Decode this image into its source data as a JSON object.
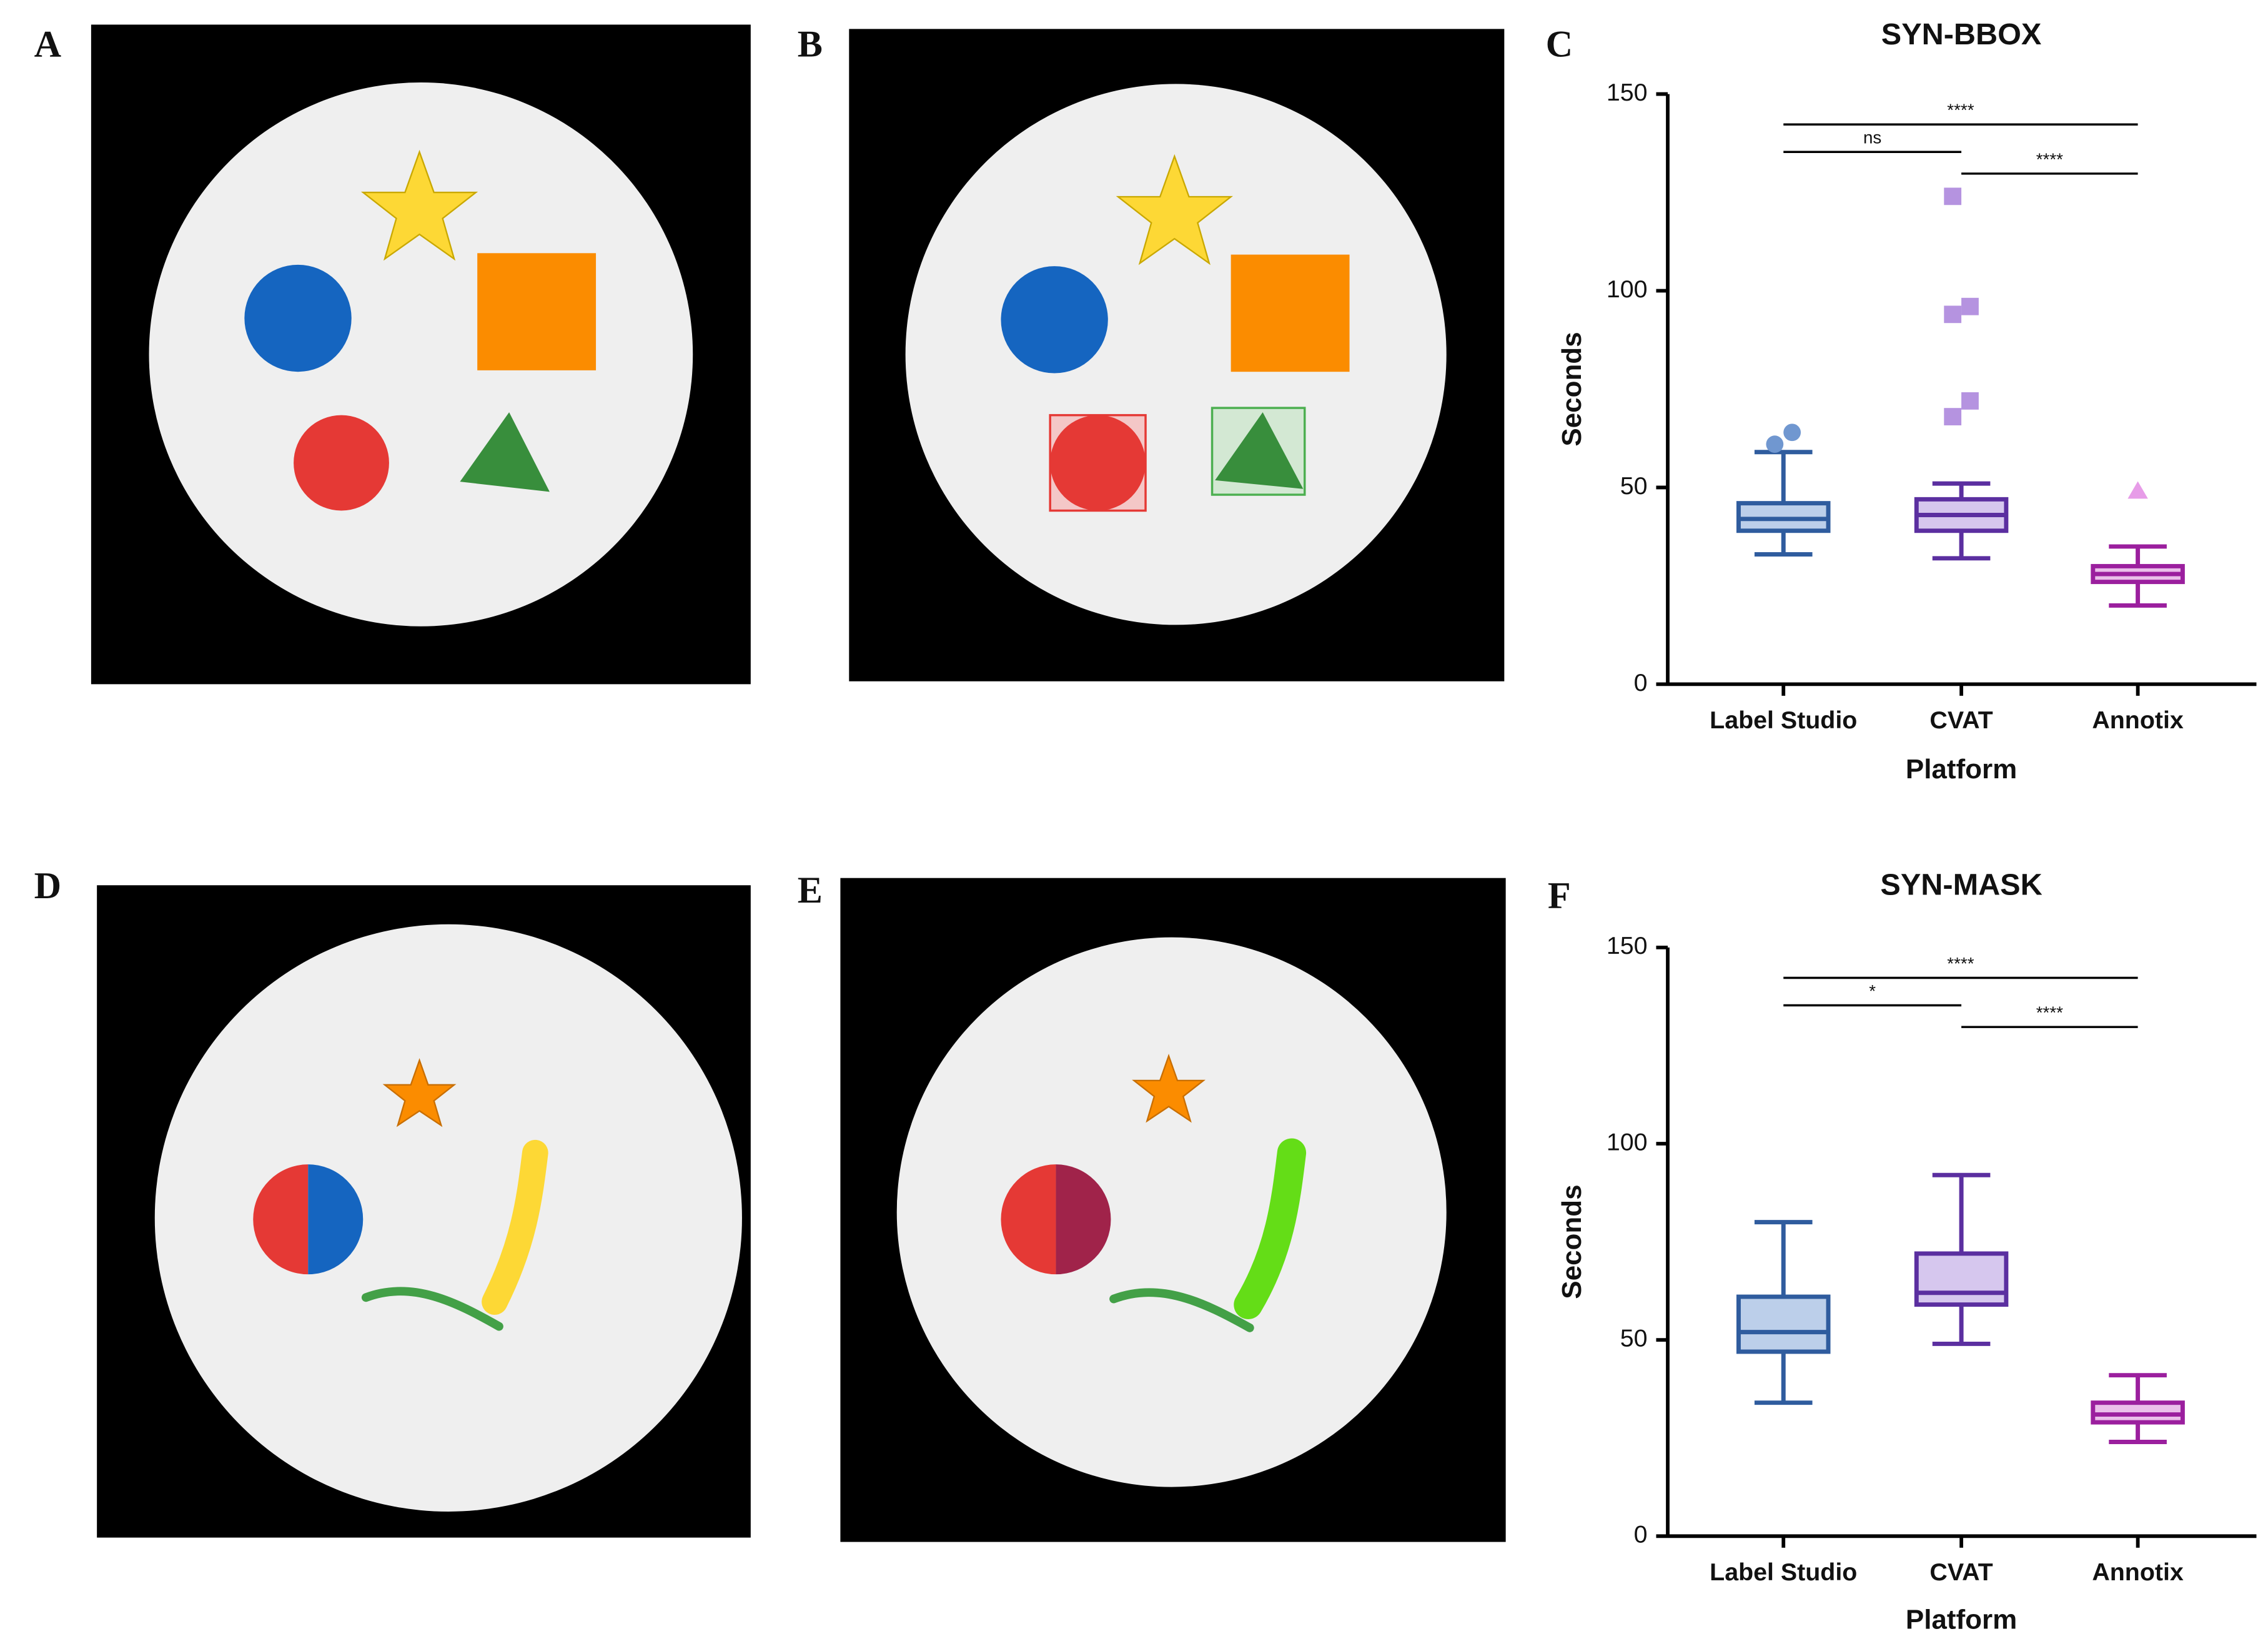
{
  "panels": [
    {
      "label": "A"
    },
    {
      "label": "B"
    },
    {
      "label": "D"
    },
    {
      "label": "E"
    }
  ],
  "chart_data": [
    {
      "type": "box",
      "panel": "C",
      "title": "SYN-BBOX",
      "xlabel": "Platform",
      "ylabel": "Seconds",
      "ylim": [
        0,
        150
      ],
      "yticks": [
        0,
        50,
        100,
        150
      ],
      "boxes": [
        {
          "name": "Label Studio",
          "color": "#2f5c9e",
          "fill": "#bccfea",
          "marker": "circle",
          "outlier_color": "#7097d0",
          "whisker_low": 33,
          "q1": 39,
          "median": 42,
          "q3": 46,
          "whisker_high": 59,
          "outliers": [
            61,
            64
          ]
        },
        {
          "name": "CVAT",
          "color": "#5b2fa0",
          "fill": "#d6c7ee",
          "marker": "square",
          "outlier_color": "#b593e0",
          "whisker_low": 32,
          "q1": 39,
          "median": 43,
          "q3": 47,
          "whisker_high": 51,
          "outliers": [
            68,
            72,
            94,
            96,
            124
          ]
        },
        {
          "name": "Annotix",
          "color": "#9b1f9e",
          "fill": "#eabfea",
          "marker": "triangle",
          "outlier_color": "#e79ce8",
          "whisker_low": 20,
          "q1": 26,
          "median": 28,
          "q3": 30,
          "whisker_high": 35,
          "outliers": [
            49
          ]
        }
      ],
      "annotations": [
        {
          "text": "****",
          "groups": [
            "Label Studio",
            "Annotix"
          ]
        },
        {
          "text": "ns",
          "groups": [
            "Label Studio",
            "CVAT"
          ]
        },
        {
          "text": "****",
          "groups": [
            "CVAT",
            "Annotix"
          ]
        }
      ]
    },
    {
      "type": "box",
      "panel": "F",
      "title": "SYN-MASK",
      "xlabel": "Platform",
      "ylabel": "Seconds",
      "ylim": [
        0,
        150
      ],
      "yticks": [
        0,
        50,
        100,
        150
      ],
      "boxes": [
        {
          "name": "Label Studio",
          "color": "#2f5c9e",
          "fill": "#bccfea",
          "marker": "circle",
          "outlier_color": "#7097d0",
          "whisker_low": 34,
          "q1": 47,
          "median": 52,
          "q3": 61,
          "whisker_high": 80,
          "outliers": []
        },
        {
          "name": "CVAT",
          "color": "#5b2fa0",
          "fill": "#d6c7ee",
          "marker": "square",
          "outlier_color": "#b593e0",
          "whisker_low": 49,
          "q1": 59,
          "median": 62,
          "q3": 72,
          "whisker_high": 92,
          "outliers": []
        },
        {
          "name": "Annotix",
          "color": "#9b1f9e",
          "fill": "#eabfea",
          "marker": "triangle",
          "outlier_color": "#e79ce8",
          "whisker_low": 24,
          "q1": 29,
          "median": 31,
          "q3": 34,
          "whisker_high": 41,
          "outliers": []
        }
      ],
      "annotations": [
        {
          "text": "****",
          "groups": [
            "Label Studio",
            "Annotix"
          ]
        },
        {
          "text": "*",
          "groups": [
            "Label Studio",
            "CVAT"
          ]
        },
        {
          "text": "****",
          "groups": [
            "CVAT",
            "Annotix"
          ]
        }
      ]
    }
  ]
}
